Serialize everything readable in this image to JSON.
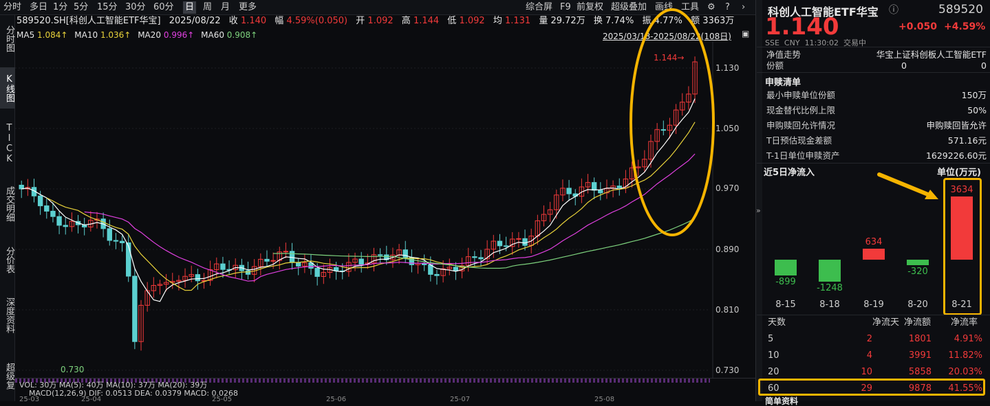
{
  "toolbar": {
    "periods": [
      "分时",
      "多日",
      "1分",
      "5分",
      "15分",
      "30分",
      "60分",
      "日",
      "周",
      "月",
      "更多"
    ],
    "right": [
      "综合屏",
      "F9",
      "前复权",
      "超级叠加",
      "画线",
      "工具"
    ]
  },
  "sidebar": [
    "分时图",
    "K线图",
    "TICK",
    "成交明细",
    "分价表",
    "深度资料",
    "超级复"
  ],
  "info": {
    "code_name": "589520.SH[科创人工智能ETF华宝]",
    "date": "2025/08/22",
    "close_label": "收",
    "close": "1.140",
    "chg_label": "幅",
    "chg": "4.59%(0.050)",
    "open_label": "开",
    "open": "1.092",
    "high_label": "高",
    "high": "1.144",
    "low_label": "低",
    "low": "1.092",
    "avg_label": "均",
    "avg": "1.131",
    "vol_label": "量",
    "vol": "29.72万",
    "turn_label": "换",
    "turn": "7.74%",
    "amp_label": "振",
    "amp": "4.77%",
    "amt_label": "额",
    "amt": "3363万"
  },
  "ma": {
    "ma5_label": "MA5",
    "ma5": "1.084↑",
    "ma10_label": "MA10",
    "ma10": "1.036↑",
    "ma20_label": "MA20",
    "ma20": "0.996↑",
    "ma60_label": "MA60",
    "ma60": "0.908↑"
  },
  "range": "2025/03/18-2025/08/22(108日)",
  "chart": {
    "y_ticks": [
      "1.130",
      "1.050",
      "0.970",
      "0.890",
      "0.810",
      "0.730"
    ],
    "high_label": "1.144→",
    "low_label": "0.730",
    "x_ticks": [
      "25-03",
      "25-04",
      "25-05",
      "25-06",
      "25-07",
      "25-08"
    ],
    "vol_line": "VOL: 30万 MA(5): 40万 MA(10): 37万 MA(20): 39万",
    "macd_line": "MACD(12,26,9) DIF: 0.0513 DEA: 0.0379 MACD: 0.0268"
  },
  "colors": {
    "up": "#f23a3a",
    "down": "#5cd0d0",
    "ma5": "#ffffff",
    "ma10": "#e8d23a",
    "ma20": "#e040e0",
    "ma60": "#7ed37e",
    "highlight": "#f5b400"
  },
  "panel": {
    "title": "科创人工智能ETF华宝",
    "code": "589520",
    "price": "1.140",
    "change": "+0.050",
    "pct": "+4.59%",
    "exchange": "SSE",
    "currency": "CNY",
    "time": "11:30:02",
    "status": "交易中",
    "nav_label": "净值走势",
    "nav_name": "华宝上证科创板人工智能ETF",
    "share_label": "份额",
    "share_a": "0",
    "share_b": "0",
    "sub_title": "申赎清单",
    "rows": [
      {
        "k": "最小申赎单位份额",
        "v": "150万"
      },
      {
        "k": "现金替代比例上限",
        "v": "50%"
      },
      {
        "k": "申购赎回允许情况",
        "v": "申购赎回皆允许"
      },
      {
        "k": "T日预估现金差额",
        "v": "571.16元"
      },
      {
        "k": "T-1日单位申赎资产",
        "v": "1629226.60元"
      }
    ],
    "flow_title": "近5日净流入",
    "flow_unit": "单位(万元)",
    "flows": [
      {
        "date": "8-15",
        "value": "-899"
      },
      {
        "date": "8-18",
        "value": "-1248"
      },
      {
        "date": "8-19",
        "value": "634"
      },
      {
        "date": "8-20",
        "value": "-320"
      },
      {
        "date": "8-21",
        "value": "3634"
      }
    ],
    "table_head": [
      "天数",
      "净流天",
      "净流额",
      "净流率"
    ],
    "table": [
      [
        "5",
        "2",
        "1801",
        "4.91%"
      ],
      [
        "10",
        "4",
        "3991",
        "11.82%"
      ],
      [
        "20",
        "10",
        "5858",
        "20.03%"
      ],
      [
        "60",
        "29",
        "9878",
        "41.55%"
      ]
    ],
    "bottom": "简单资料"
  }
}
